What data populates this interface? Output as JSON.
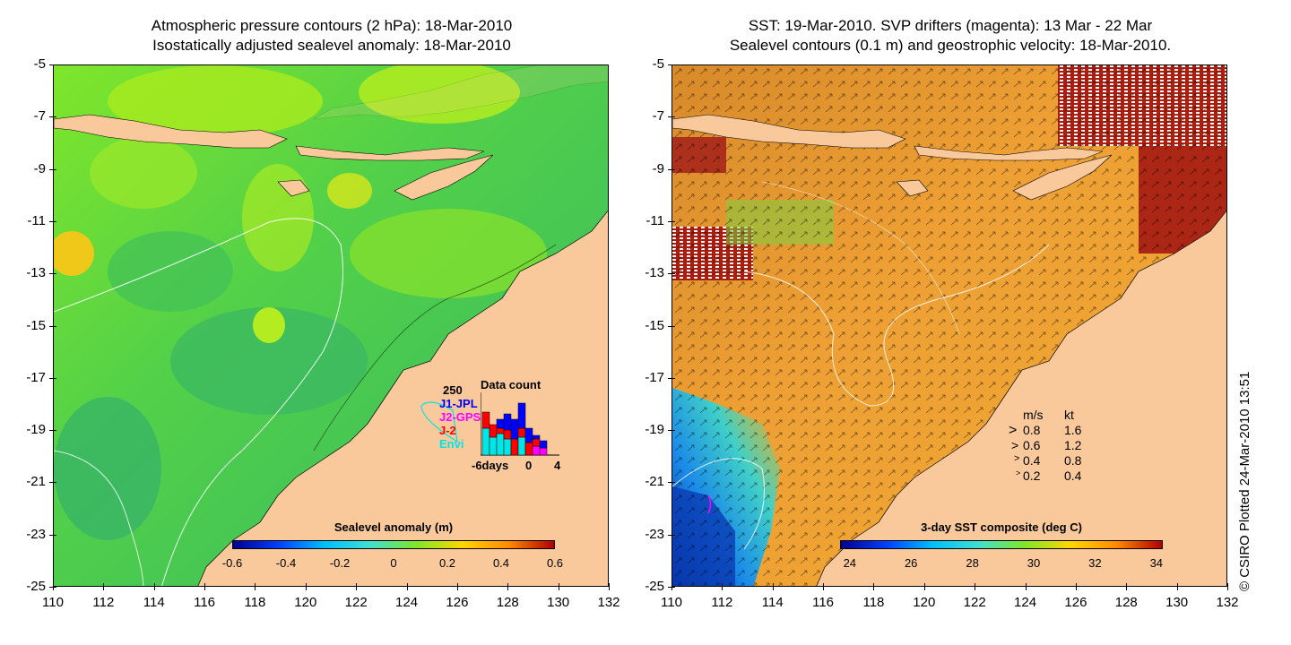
{
  "left_panel": {
    "title_line1": "Atmospheric pressure contours (2 hPa): 18-Mar-2010",
    "title_line2": "Isostatically adjusted sealevel anomaly: 18-Mar-2010",
    "colorbar": {
      "title": "Sealevel anomaly (m)",
      "ticks": [
        "-0.6",
        "-0.4",
        "-0.2",
        "0",
        "0.2",
        "0.4",
        "0.6"
      ]
    },
    "inset": {
      "max_label": "250",
      "title": "Data count",
      "missions": [
        {
          "name": "J1-JPL",
          "color": "#0000ff"
        },
        {
          "name": "J2-GPS",
          "color": "#ff00ff"
        },
        {
          "name": "J-2",
          "color": "#ff0000"
        },
        {
          "name": "Envi",
          "color": "#00e5e5"
        }
      ],
      "xaxis": {
        "left": "-6days",
        "mid": "0",
        "right": "4"
      }
    }
  },
  "right_panel": {
    "title_line1": "SST: 19-Mar-2010. SVP drifters (magenta): 13 Mar - 22 Mar",
    "title_line2": "Sealevel contours (0.1 m) and geostrophic velocity: 18-Mar-2010.",
    "colorbar": {
      "title": "3-day SST composite (deg C)",
      "ticks": [
        "24",
        "26",
        "28",
        "30",
        "32",
        "34"
      ]
    },
    "speed_legend": {
      "header_ms": "m/s",
      "header_kt": "kt",
      "rows": [
        {
          "ms": "0.8",
          "kt": "1.6"
        },
        {
          "ms": "0.6",
          "kt": "1.2"
        },
        {
          "ms": "0.4",
          "kt": "0.8"
        },
        {
          "ms": "0.2",
          "kt": "0.4"
        }
      ]
    }
  },
  "axes": {
    "lat_labels": [
      "-5",
      "-7",
      "-9",
      "-11",
      "-13",
      "-15",
      "-17",
      "-19",
      "-21",
      "-23",
      "-25"
    ],
    "lon_labels": [
      "110",
      "112",
      "114",
      "116",
      "118",
      "120",
      "122",
      "124",
      "126",
      "128",
      "130",
      "132"
    ]
  },
  "credit": "© CSIRO Plotted 24-Mar-2010 13:51",
  "colors": {
    "land": "#f9c99c",
    "sla_mid": "#5fdc3a",
    "sst_mid": "#f0a030"
  }
}
